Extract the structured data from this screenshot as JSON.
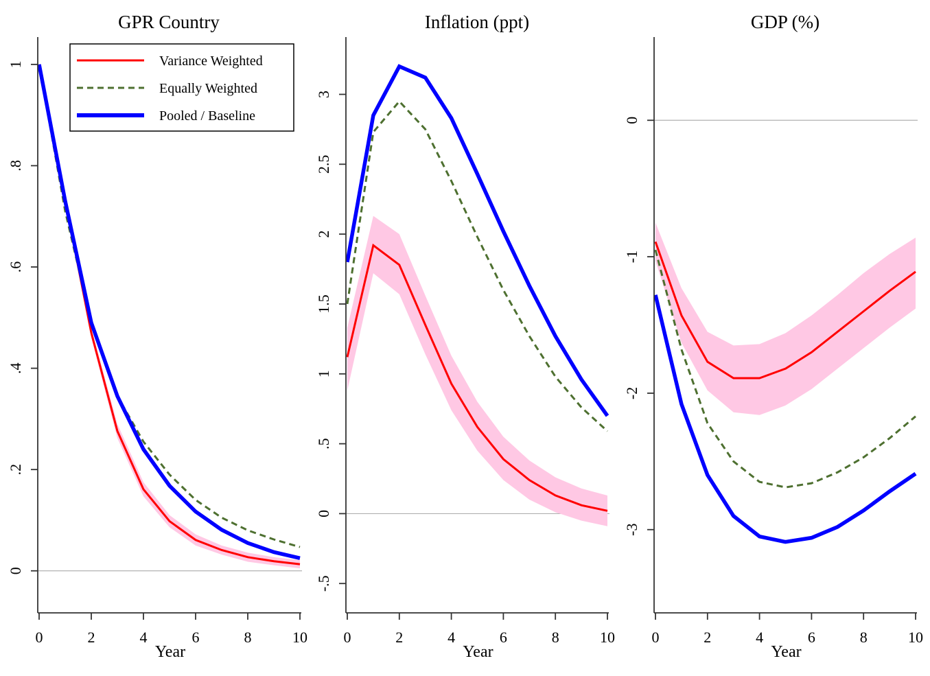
{
  "legend": {
    "items": [
      {
        "key": "vw",
        "label": "Variance Weighted",
        "color": "#ff0000",
        "style": "solid-thin"
      },
      {
        "key": "ew",
        "label": "Equally Weighted",
        "color": "#4e7030",
        "style": "dashed"
      },
      {
        "key": "pooled",
        "label": "Pooled / Baseline",
        "color": "#0000ff",
        "style": "solid-thick"
      }
    ],
    "placement": "top-right of first panel"
  },
  "colors": {
    "vw": "#ff0000",
    "ew": "#4e7030",
    "pooled": "#0000ff",
    "band": "#ffc8e4",
    "zero_line": "#b0b0b0",
    "axis": "#333333"
  },
  "chart_data": [
    {
      "type": "line",
      "title": "GPR Country",
      "xlabel": "Year",
      "ylabel": "",
      "x": [
        0,
        1,
        2,
        3,
        4,
        5,
        6,
        7,
        8,
        9,
        10
      ],
      "xlim": [
        0,
        10
      ],
      "ylim": [
        -0.083,
        1.054
      ],
      "xticks": [
        0,
        2,
        4,
        6,
        8,
        10
      ],
      "xtick_labels": [
        "0",
        "2",
        "4",
        "6",
        "8",
        "10"
      ],
      "yticks": [
        0,
        0.2,
        0.4,
        0.6,
        0.8,
        1
      ],
      "ytick_labels": [
        "0",
        ".2",
        ".4",
        ".6",
        ".8",
        "1"
      ],
      "zero_line": true,
      "grid": false,
      "series": [
        {
          "key": "vw",
          "name": "Variance Weighted",
          "values": [
            1.0,
            0.73,
            0.47,
            0.276,
            0.161,
            0.098,
            0.061,
            0.041,
            0.027,
            0.019,
            0.013
          ],
          "band_upper": [
            1.0,
            0.735,
            0.48,
            0.29,
            0.175,
            0.11,
            0.072,
            0.05,
            0.036,
            0.027,
            0.021
          ],
          "band_lower": [
            1.0,
            0.725,
            0.46,
            0.262,
            0.147,
            0.086,
            0.05,
            0.032,
            0.018,
            0.011,
            0.005
          ]
        },
        {
          "key": "ew",
          "name": "Equally Weighted",
          "values": [
            1.0,
            0.71,
            0.49,
            0.345,
            0.255,
            0.19,
            0.14,
            0.105,
            0.08,
            0.062,
            0.047
          ]
        },
        {
          "key": "pooled",
          "name": "Pooled / Baseline",
          "values": [
            1.0,
            0.73,
            0.49,
            0.345,
            0.24,
            0.168,
            0.117,
            0.081,
            0.055,
            0.037,
            0.025
          ]
        }
      ]
    },
    {
      "type": "line",
      "title": "Inflation (ppt)",
      "xlabel": "Year",
      "ylabel": "",
      "x": [
        0,
        1,
        2,
        3,
        4,
        5,
        6,
        7,
        8,
        9,
        10
      ],
      "xlim": [
        0,
        10
      ],
      "ylim": [
        -0.71,
        3.41
      ],
      "xticks": [
        0,
        2,
        4,
        6,
        8,
        10
      ],
      "xtick_labels": [
        "0",
        "2",
        "4",
        "6",
        "8",
        "10"
      ],
      "yticks": [
        -0.5,
        0,
        0.5,
        1,
        1.5,
        2,
        2.5,
        3
      ],
      "ytick_labels": [
        "-.5",
        "0",
        ".5",
        "1",
        "1.5",
        "2",
        "2.5",
        "3"
      ],
      "zero_line": true,
      "grid": false,
      "series": [
        {
          "key": "vw",
          "name": "Variance Weighted",
          "values": [
            1.12,
            1.92,
            1.78,
            1.35,
            0.93,
            0.62,
            0.39,
            0.24,
            0.13,
            0.06,
            0.02
          ],
          "band_upper": [
            1.33,
            2.13,
            2.0,
            1.56,
            1.13,
            0.8,
            0.55,
            0.38,
            0.26,
            0.18,
            0.13
          ],
          "band_lower": [
            0.88,
            1.72,
            1.57,
            1.14,
            0.74,
            0.45,
            0.24,
            0.1,
            0.01,
            -0.05,
            -0.09
          ]
        },
        {
          "key": "ew",
          "name": "Equally Weighted",
          "values": [
            1.5,
            2.73,
            2.95,
            2.75,
            2.38,
            1.98,
            1.6,
            1.27,
            0.98,
            0.76,
            0.59
          ]
        },
        {
          "key": "pooled",
          "name": "Pooled / Baseline",
          "values": [
            1.8,
            2.85,
            3.2,
            3.12,
            2.83,
            2.43,
            2.02,
            1.63,
            1.27,
            0.96,
            0.7
          ]
        }
      ]
    },
    {
      "type": "line",
      "title": "GDP (%)",
      "xlabel": "Year",
      "ylabel": "",
      "x": [
        0,
        1,
        2,
        3,
        4,
        5,
        6,
        7,
        8,
        9,
        10
      ],
      "xlim": [
        0,
        10
      ],
      "ylim": [
        -3.61,
        0.61
      ],
      "xticks": [
        0,
        2,
        4,
        6,
        8,
        10
      ],
      "xtick_labels": [
        "0",
        "2",
        "4",
        "6",
        "8",
        "10"
      ],
      "yticks": [
        -3,
        -2,
        -1,
        0
      ],
      "ytick_labels": [
        "-3",
        "-2",
        "-1",
        "0"
      ],
      "zero_line": true,
      "grid": false,
      "series": [
        {
          "key": "vw",
          "name": "Variance Weighted",
          "values": [
            -0.89,
            -1.43,
            -1.77,
            -1.89,
            -1.89,
            -1.82,
            -1.7,
            -1.55,
            -1.4,
            -1.25,
            -1.11
          ],
          "band_upper": [
            -0.75,
            -1.23,
            -1.55,
            -1.65,
            -1.64,
            -1.56,
            -1.43,
            -1.28,
            -1.12,
            -0.98,
            -0.86
          ],
          "band_lower": [
            -1.03,
            -1.63,
            -1.98,
            -2.14,
            -2.16,
            -2.09,
            -1.97,
            -1.82,
            -1.67,
            -1.52,
            -1.38
          ]
        },
        {
          "key": "ew",
          "name": "Equally Weighted",
          "values": [
            -0.95,
            -1.68,
            -2.22,
            -2.5,
            -2.65,
            -2.69,
            -2.66,
            -2.58,
            -2.47,
            -2.33,
            -2.17
          ]
        },
        {
          "key": "pooled",
          "name": "Pooled / Baseline",
          "values": [
            -1.28,
            -2.08,
            -2.6,
            -2.9,
            -3.05,
            -3.09,
            -3.06,
            -2.98,
            -2.86,
            -2.72,
            -2.59
          ]
        }
      ]
    }
  ]
}
